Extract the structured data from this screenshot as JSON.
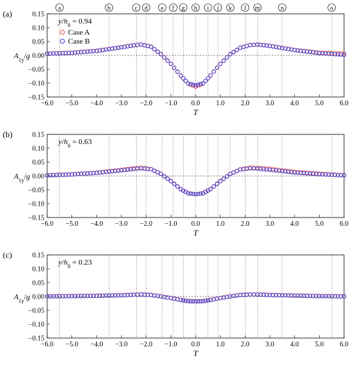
{
  "markers": [
    "a",
    "b",
    "c",
    "d",
    "e",
    "f",
    "g",
    "h",
    "i",
    "j",
    "k",
    "l",
    "m",
    "n",
    "o"
  ],
  "marker_t": [
    -5.5,
    -3.5,
    -2.4,
    -2.0,
    -1.35,
    -0.9,
    -0.5,
    0.0,
    0.5,
    0.9,
    1.4,
    2.0,
    2.5,
    3.5,
    5.5
  ],
  "colors": {
    "case_a": "#e8554e",
    "case_b": "#3b3bd6",
    "axis": "#000000",
    "grid": "#000000"
  },
  "chart_data": [
    {
      "type": "scatter",
      "panel_label": "(a)",
      "annotation": "y/h0 = 0.94",
      "xlabel": "T",
      "ylabel": "A1y/g",
      "xlim": [
        -6.0,
        6.0
      ],
      "ylim": [
        -0.15,
        0.15
      ],
      "xticks": [
        "−6.0",
        "−5.0",
        "−4.0",
        "−3.0",
        "−2.0",
        "−1.0",
        "0.0",
        "1.0",
        "2.0",
        "3.0",
        "4.0",
        "5.0",
        "6.0"
      ],
      "yticks": [
        "0.15",
        "0.10",
        "0.05",
        "0.00",
        "−0.05",
        "−0.10",
        "−0.15"
      ],
      "legend": [
        "Case A",
        "Case B"
      ],
      "legend_position": "top-left",
      "series": [
        {
          "name": "Case A",
          "x": [
            -6.0,
            -5.0,
            -4.0,
            -3.0,
            -2.5,
            -2.2,
            -1.8,
            -1.4,
            -1.0,
            -0.6,
            -0.3,
            0.0,
            0.3,
            0.6,
            1.0,
            1.4,
            1.8,
            2.2,
            2.5,
            3.0,
            4.0,
            5.0,
            6.0
          ],
          "y": [
            0.007,
            0.01,
            0.017,
            0.03,
            0.037,
            0.04,
            0.032,
            0.005,
            -0.03,
            -0.072,
            -0.102,
            -0.113,
            -0.102,
            -0.072,
            -0.03,
            0.005,
            0.028,
            0.038,
            0.04,
            0.035,
            0.02,
            0.01,
            0.007
          ]
        },
        {
          "name": "Case B",
          "x": [
            -6.0,
            -5.0,
            -4.0,
            -3.0,
            -2.5,
            -2.2,
            -1.8,
            -1.4,
            -1.0,
            -0.6,
            -0.3,
            0.0,
            0.3,
            0.6,
            1.0,
            1.4,
            1.8,
            2.2,
            2.5,
            3.0,
            4.0,
            5.0,
            6.0
          ],
          "y": [
            0.006,
            0.009,
            0.016,
            0.029,
            0.036,
            0.039,
            0.031,
            0.004,
            -0.031,
            -0.073,
            -0.101,
            -0.108,
            -0.101,
            -0.073,
            -0.031,
            0.004,
            0.027,
            0.037,
            0.039,
            0.034,
            0.019,
            0.008,
            0.002
          ]
        }
      ]
    },
    {
      "type": "scatter",
      "panel_label": "(b)",
      "annotation": "y/h0 = 0.63",
      "xlabel": "T",
      "ylabel": "A1y/g",
      "xlim": [
        -6.0,
        6.0
      ],
      "ylim": [
        -0.15,
        0.15
      ],
      "xticks": [
        "−6.0",
        "−5.0",
        "−4.0",
        "−3.0",
        "−2.0",
        "−1.0",
        "0.0",
        "1.0",
        "2.0",
        "3.0",
        "4.0",
        "5.0",
        "6.0"
      ],
      "yticks": [
        "0.15",
        "0.10",
        "0.05",
        "0.00",
        "−0.05",
        "−0.10",
        "−0.15"
      ],
      "series": [
        {
          "name": "Case A",
          "x": [
            -6.0,
            -5.0,
            -4.0,
            -3.0,
            -2.5,
            -2.2,
            -1.8,
            -1.4,
            -1.0,
            -0.6,
            -0.3,
            0.0,
            0.3,
            0.6,
            1.0,
            1.4,
            1.8,
            2.2,
            2.5,
            3.0,
            4.0,
            5.0,
            6.0
          ],
          "y": [
            0.003,
            0.006,
            0.012,
            0.022,
            0.028,
            0.03,
            0.025,
            0.008,
            -0.018,
            -0.047,
            -0.062,
            -0.066,
            -0.062,
            -0.047,
            -0.018,
            0.008,
            0.024,
            0.03,
            0.03,
            0.026,
            0.015,
            0.008,
            0.003
          ]
        },
        {
          "name": "Case B",
          "x": [
            -6.0,
            -5.0,
            -4.0,
            -3.0,
            -2.5,
            -2.2,
            -1.8,
            -1.4,
            -1.0,
            -0.6,
            -0.3,
            0.0,
            0.3,
            0.6,
            1.0,
            1.4,
            1.8,
            2.2,
            2.5,
            3.0,
            4.0,
            5.0,
            6.0
          ],
          "y": [
            0.002,
            0.005,
            0.011,
            0.02,
            0.025,
            0.027,
            0.024,
            0.007,
            -0.019,
            -0.048,
            -0.063,
            -0.066,
            -0.063,
            -0.048,
            -0.019,
            0.007,
            0.023,
            0.027,
            0.026,
            0.022,
            0.012,
            0.006,
            0.002
          ]
        }
      ]
    },
    {
      "type": "scatter",
      "panel_label": "(c)",
      "annotation": "y/h0 = 0.23",
      "xlabel": "T",
      "ylabel": "A1y/g",
      "xlim": [
        -6.0,
        6.0
      ],
      "ylim": [
        -0.15,
        0.15
      ],
      "xticks": [
        "−6.0",
        "−5.0",
        "−4.0",
        "−3.0",
        "−2.0",
        "−1.0",
        "0.0",
        "1.0",
        "2.0",
        "3.0",
        "4.0",
        "5.0",
        "6.0"
      ],
      "yticks": [
        "0.15",
        "0.10",
        "0.05",
        "0.00",
        "−0.05",
        "−0.10",
        "−0.15"
      ],
      "series": [
        {
          "name": "Case A",
          "x": [
            -6.0,
            -5.0,
            -4.0,
            -3.0,
            -2.5,
            -2.2,
            -1.8,
            -1.4,
            -1.0,
            -0.6,
            -0.3,
            0.0,
            0.3,
            0.6,
            1.0,
            1.4,
            1.8,
            2.2,
            2.5,
            3.0,
            4.0,
            5.0,
            6.0
          ],
          "y": [
            0.001,
            0.002,
            0.003,
            0.005,
            0.007,
            0.008,
            0.006,
            0.001,
            -0.005,
            -0.012,
            -0.016,
            -0.017,
            -0.016,
            -0.012,
            -0.005,
            0.001,
            0.006,
            0.008,
            0.008,
            0.006,
            0.004,
            0.002,
            0.001
          ]
        },
        {
          "name": "Case B",
          "x": [
            -6.0,
            -5.0,
            -4.0,
            -3.0,
            -2.5,
            -2.2,
            -1.8,
            -1.4,
            -1.0,
            -0.6,
            -0.3,
            0.0,
            0.3,
            0.6,
            1.0,
            1.4,
            1.8,
            2.2,
            2.5,
            3.0,
            4.0,
            5.0,
            6.0
          ],
          "y": [
            0.0,
            0.001,
            0.002,
            0.004,
            0.006,
            0.007,
            0.005,
            0.0,
            -0.006,
            -0.013,
            -0.017,
            -0.018,
            -0.017,
            -0.013,
            -0.006,
            0.0,
            0.005,
            0.007,
            0.007,
            0.005,
            0.003,
            0.001,
            0.0
          ]
        }
      ]
    }
  ]
}
